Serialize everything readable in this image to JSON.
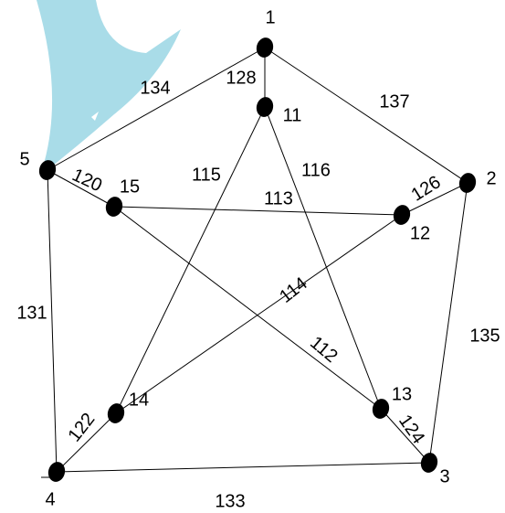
{
  "nodes": [
    {
      "label": "1"
    },
    {
      "label": "2"
    },
    {
      "label": "3"
    },
    {
      "label": "4"
    },
    {
      "label": "5"
    },
    {
      "label": "11"
    },
    {
      "label": "12"
    },
    {
      "label": "13"
    },
    {
      "label": "14"
    },
    {
      "label": "15"
    }
  ],
  "edges": [
    {
      "label": "128"
    },
    {
      "label": "134"
    },
    {
      "label": "137"
    },
    {
      "label": "120"
    },
    {
      "label": "113"
    },
    {
      "label": "126"
    },
    {
      "label": "131"
    },
    {
      "label": "135"
    },
    {
      "label": "133"
    },
    {
      "label": "115"
    },
    {
      "label": "116"
    },
    {
      "label": "114"
    },
    {
      "label": "112"
    },
    {
      "label": "122"
    },
    {
      "label": "124"
    }
  ]
}
